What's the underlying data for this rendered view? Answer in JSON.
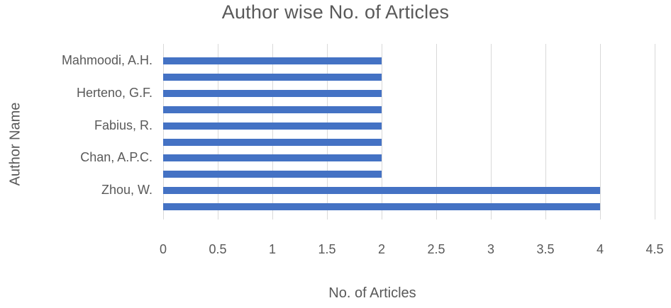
{
  "title": "Author wise No. of Articles",
  "axes": {
    "x_title": "No. of Articles",
    "y_title": "Author Name"
  },
  "colors": {
    "bar": "#4472c4",
    "text": "#595959",
    "gridline": "#d9d9d9"
  },
  "chart_data": {
    "type": "bar",
    "orientation": "horizontal",
    "title": "Author wise No. of Articles",
    "xlabel": "No. of Articles",
    "ylabel": "Author Name",
    "xlim": [
      0,
      4.5
    ],
    "x_ticks": [
      "0",
      "0.5",
      "1",
      "1.5",
      "2",
      "2.5",
      "3",
      "3.5",
      "4",
      "4.5"
    ],
    "grid": true,
    "legend": "none",
    "bar_color": "#4472c4",
    "bars": [
      {
        "label": "Mahmoodi, A.H.",
        "value": 2
      },
      {
        "label": "",
        "value": 2
      },
      {
        "label": "Herteno, G.F.",
        "value": 2
      },
      {
        "label": "",
        "value": 2
      },
      {
        "label": "Fabius, R.",
        "value": 2
      },
      {
        "label": "",
        "value": 2
      },
      {
        "label": "Chan, A.P.C.",
        "value": 2
      },
      {
        "label": "",
        "value": 2
      },
      {
        "label": "Zhou, W.",
        "value": 4
      },
      {
        "label": "",
        "value": 4
      }
    ]
  }
}
